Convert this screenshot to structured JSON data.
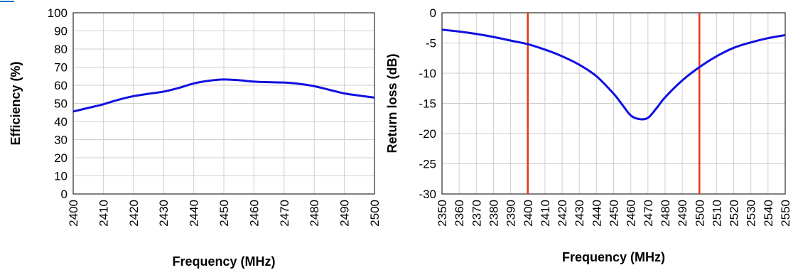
{
  "chart_data": [
    {
      "type": "line",
      "title": "",
      "xlabel": "Frequency (MHz)",
      "ylabel": "Efficiency (%)",
      "xlim": [
        2400,
        2500
      ],
      "ylim": [
        0,
        100
      ],
      "xticks": [
        2400,
        2410,
        2420,
        2430,
        2440,
        2450,
        2460,
        2470,
        2480,
        2490,
        2500
      ],
      "yticks": [
        0,
        10,
        20,
        30,
        40,
        50,
        60,
        70,
        80,
        90,
        100
      ],
      "grid": true,
      "series": [
        {
          "color": "#1010e0",
          "x": [
            2400,
            2405,
            2410,
            2415,
            2420,
            2425,
            2430,
            2435,
            2440,
            2445,
            2450,
            2455,
            2460,
            2465,
            2470,
            2475,
            2480,
            2485,
            2490,
            2495,
            2500
          ],
          "y": [
            45.5,
            47.5,
            49.5,
            52,
            54,
            55.3,
            56.5,
            58.5,
            61,
            62.5,
            63.2,
            62.8,
            62,
            61.7,
            61.5,
            60.8,
            59.5,
            57.5,
            55.5,
            54.3,
            53.2
          ]
        }
      ]
    },
    {
      "type": "line",
      "title": "",
      "xlabel": "Frequency (MHz)",
      "ylabel": "Return loss (dB)",
      "xlim": [
        2350,
        2550
      ],
      "ylim": [
        -30,
        0
      ],
      "xticks": [
        2350,
        2360,
        2370,
        2380,
        2390,
        2400,
        2410,
        2420,
        2430,
        2440,
        2450,
        2460,
        2470,
        2480,
        2490,
        2500,
        2510,
        2520,
        2530,
        2540,
        2550
      ],
      "yticks": [
        0,
        -5,
        -10,
        -15,
        -20,
        -25,
        -30
      ],
      "grid": true,
      "vlines": [
        {
          "x": 2400,
          "color": "#ee3311"
        },
        {
          "x": 2500,
          "color": "#ee3311"
        }
      ],
      "series": [
        {
          "color": "#1010e0",
          "x": [
            2350,
            2360,
            2370,
            2380,
            2390,
            2400,
            2410,
            2420,
            2430,
            2440,
            2450,
            2455,
            2460,
            2465,
            2470,
            2475,
            2480,
            2490,
            2500,
            2510,
            2520,
            2530,
            2540,
            2550
          ],
          "y": [
            -2.8,
            -3.1,
            -3.5,
            -4.0,
            -4.6,
            -5.2,
            -6.1,
            -7.2,
            -8.6,
            -10.5,
            -13.4,
            -15.2,
            -17.0,
            -17.6,
            -17.4,
            -15.8,
            -14.0,
            -11.2,
            -9.0,
            -7.2,
            -5.8,
            -4.9,
            -4.2,
            -3.7
          ]
        }
      ]
    }
  ]
}
